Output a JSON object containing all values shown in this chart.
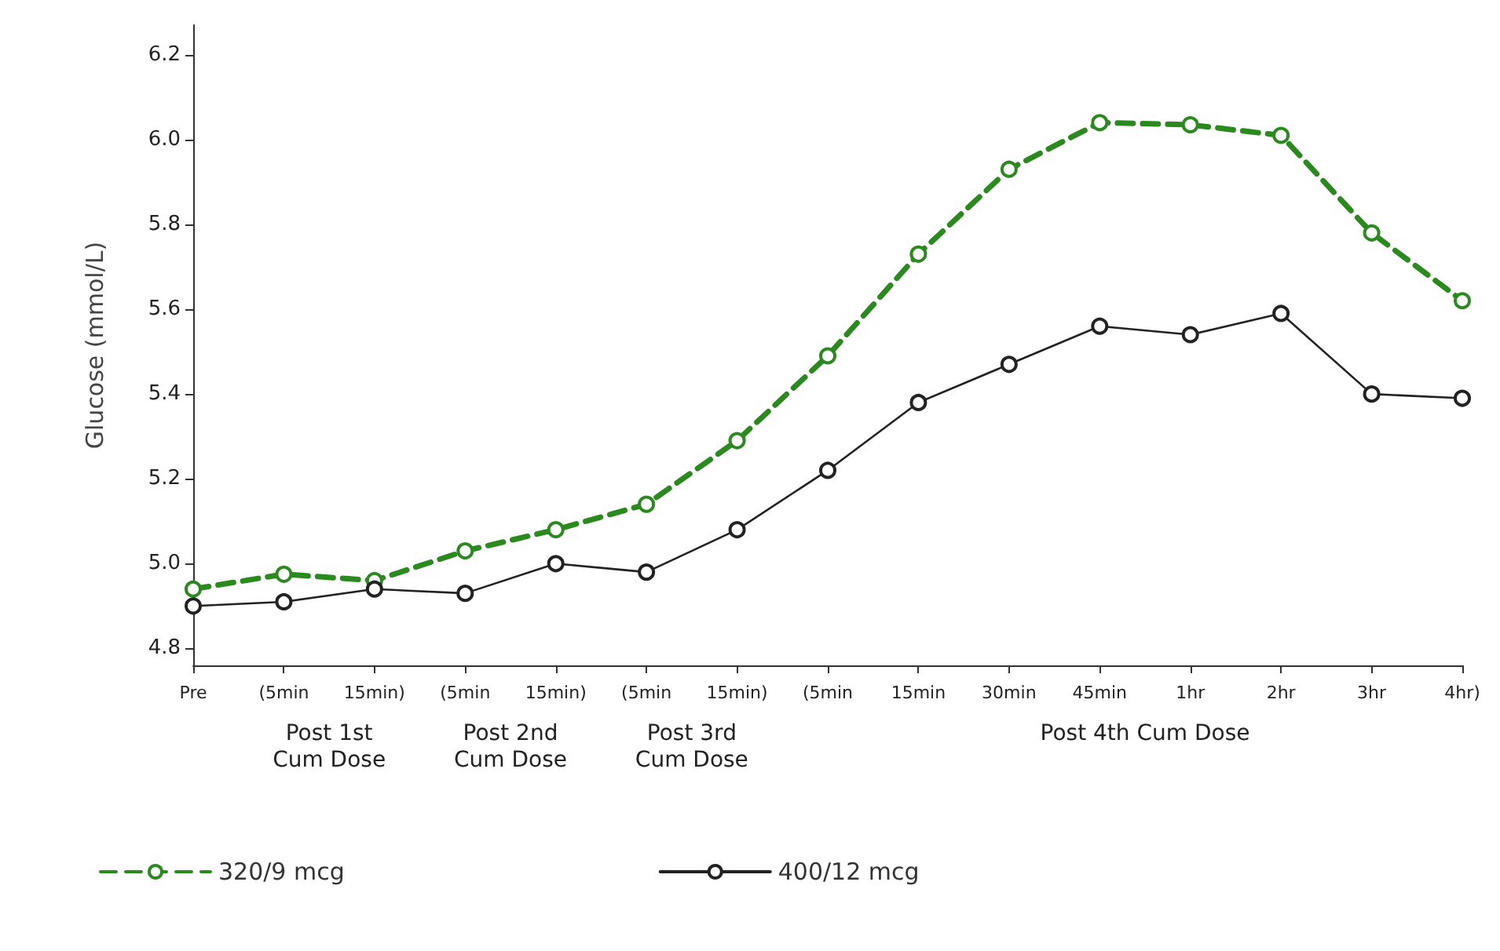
{
  "chart_data": {
    "type": "line",
    "ylabel": "Glucose (mmol/L)",
    "categories": [
      "Pre",
      "(5min",
      "15min)",
      "(5min",
      "15min)",
      "(5min",
      "15min)",
      "(5min",
      "15min",
      "30min",
      "45min",
      "1hr",
      "2hr",
      "3hr",
      "4hr)"
    ],
    "series": [
      {
        "name": "320/9 mcg",
        "color": "#2a8a1e",
        "line_style": "dashed",
        "values": [
          4.94,
          4.975,
          4.96,
          5.03,
          5.08,
          5.14,
          5.29,
          5.49,
          5.73,
          5.93,
          6.04,
          6.035,
          6.01,
          5.78,
          5.62
        ]
      },
      {
        "name": "400/12 mcg",
        "color": "#222222",
        "line_style": "solid",
        "values": [
          4.9,
          4.91,
          4.94,
          4.93,
          5.0,
          4.98,
          5.08,
          5.22,
          5.38,
          5.47,
          5.56,
          5.54,
          5.59,
          5.4,
          5.39
        ]
      }
    ],
    "ylim": [
      4.76,
      6.27
    ],
    "yticks": [
      4.8,
      {
        "value": 5,
        "label": "5.0"
      },
      5.2,
      5.4,
      5.6,
      5.8,
      {
        "value": 6,
        "label": "6.0"
      },
      6.2
    ],
    "annotations": [
      "Post 1st\nCum Dose",
      "Post 2nd\nCum Dose",
      "Post 3rd\nCum Dose",
      "Post 4th Cum Dose"
    ],
    "marker": "circle",
    "grid": false,
    "legend": "bottom"
  }
}
